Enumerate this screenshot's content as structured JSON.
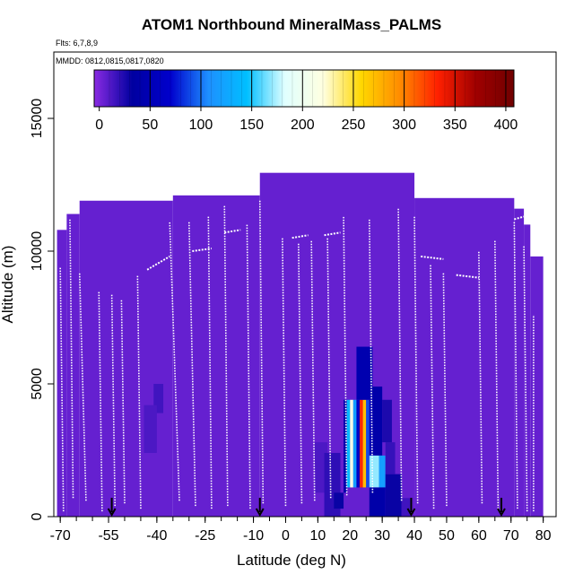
{
  "chart_data": {
    "type": "heatmap",
    "title": "ATOM1 Northbound MineralMass_PALMS",
    "subtitle_flights": "Flts: 6,7,8,9",
    "subtitle_dates": "MMDD: 0812,0815,0817,0820",
    "xlabel": "Latitude (deg N)",
    "ylabel": "Altitude (m)",
    "xlim": [
      -72,
      84
    ],
    "ylim": [
      0,
      17500
    ],
    "xticks": [
      -70,
      -55,
      -40,
      -25,
      -10,
      0,
      10,
      20,
      30,
      40,
      50,
      60,
      70,
      80
    ],
    "yticks": [
      0,
      5000,
      10000,
      15000
    ],
    "colorbar": {
      "ticks": [
        0,
        50,
        100,
        150,
        200,
        250,
        300,
        350,
        400
      ],
      "range": [
        -5,
        408
      ],
      "colors": [
        "#8a2be2",
        "#0000a0",
        "#0000cd",
        "#1e90ff",
        "#00bfff",
        "#e0ffff",
        "#ffffe0",
        "#ffd700",
        "#ff8c00",
        "#ff2000",
        "#a00000",
        "#700000"
      ]
    },
    "background_value": 5,
    "curtain_top": [
      {
        "lat_start": -71,
        "lat_end": -68,
        "alt": 10800
      },
      {
        "lat_start": -68,
        "lat_end": -64,
        "alt": 11400
      },
      {
        "lat_start": -64,
        "lat_end": -35,
        "alt": 11900
      },
      {
        "lat_start": -35,
        "lat_end": -8,
        "alt": 12100
      },
      {
        "lat_start": -8,
        "lat_end": 40,
        "alt": 12950
      },
      {
        "lat_start": 40,
        "lat_end": 71,
        "alt": 12000
      },
      {
        "lat_start": 71,
        "lat_end": 74,
        "alt": 11600
      },
      {
        "lat_start": 74,
        "lat_end": 76,
        "alt": 11000
      },
      {
        "lat_start": 76,
        "lat_end": 80,
        "alt": 9800
      }
    ],
    "cells": [
      {
        "lat": [
          -41,
          -38
        ],
        "alt": [
          3900,
          5000
        ],
        "value": 15
      },
      {
        "lat": [
          -44,
          -40
        ],
        "alt": [
          2400,
          4200
        ],
        "value": 12
      },
      {
        "lat": [
          9,
          13
        ],
        "alt": [
          900,
          2800
        ],
        "value": 12
      },
      {
        "lat": [
          12,
          17
        ],
        "alt": [
          0,
          2400
        ],
        "value": 20
      },
      {
        "lat": [
          15,
          18
        ],
        "alt": [
          300,
          900
        ],
        "value": 30
      },
      {
        "lat": [
          18,
          19
        ],
        "alt": [
          900,
          4400
        ],
        "value": 40
      },
      {
        "lat": [
          19,
          20
        ],
        "alt": [
          1100,
          4400
        ],
        "value": 140
      },
      {
        "lat": [
          20,
          21
        ],
        "alt": [
          1100,
          4400
        ],
        "value": 210
      },
      {
        "lat": [
          21,
          22
        ],
        "alt": [
          1100,
          4400
        ],
        "value": 120
      },
      {
        "lat": [
          22,
          23
        ],
        "alt": [
          1100,
          4400
        ],
        "value": 60
      },
      {
        "lat": [
          23,
          24
        ],
        "alt": [
          1100,
          4400
        ],
        "value": 330
      },
      {
        "lat": [
          24,
          25
        ],
        "alt": [
          1100,
          4400
        ],
        "value": 270
      },
      {
        "lat": [
          25,
          26
        ],
        "alt": [
          1100,
          4400
        ],
        "value": 90
      },
      {
        "lat": [
          26,
          27
        ],
        "alt": [
          1100,
          4400
        ],
        "value": 50
      },
      {
        "lat": [
          22,
          27
        ],
        "alt": [
          4400,
          6400
        ],
        "value": 45
      },
      {
        "lat": [
          27,
          30
        ],
        "alt": [
          2300,
          4900
        ],
        "value": 40
      },
      {
        "lat": [
          26,
          29
        ],
        "alt": [
          1100,
          2300
        ],
        "value": 170
      },
      {
        "lat": [
          29,
          31
        ],
        "alt": [
          1100,
          2300
        ],
        "value": 120
      },
      {
        "lat": [
          26,
          31
        ],
        "alt": [
          0,
          1100
        ],
        "value": 40
      },
      {
        "lat": [
          31,
          36
        ],
        "alt": [
          0,
          1600
        ],
        "value": 30
      },
      {
        "lat": [
          31,
          34
        ],
        "alt": [
          1600,
          2800
        ],
        "value": 18
      },
      {
        "lat": [
          30,
          33
        ],
        "alt": [
          2800,
          4400
        ],
        "value": 25
      },
      {
        "lat": [
          36,
          39
        ],
        "alt": [
          0,
          700
        ],
        "value": 15
      }
    ],
    "profiles": [
      {
        "lat_bottom": -69,
        "lat_top": -70,
        "alt_bottom": 200,
        "alt_top": 9400
      },
      {
        "lat_bottom": -66,
        "lat_top": -67,
        "alt_bottom": 700,
        "alt_top": 11200
      },
      {
        "lat_bottom": -62,
        "lat_top": -64,
        "alt_bottom": 600,
        "alt_top": 9200
      },
      {
        "lat_bottom": -57,
        "lat_top": -58,
        "alt_bottom": 200,
        "alt_top": 8500
      },
      {
        "lat_bottom": -53,
        "lat_top": -54,
        "alt_bottom": 400,
        "alt_top": 8400
      },
      {
        "lat_bottom": -50,
        "lat_top": -51,
        "alt_bottom": 500,
        "alt_top": 8200
      },
      {
        "lat_bottom": -45,
        "lat_top": -46,
        "alt_bottom": 300,
        "alt_top": 9100
      },
      {
        "lat_bottom": -33,
        "lat_top": -36,
        "alt_bottom": 600,
        "alt_top": 11100
      },
      {
        "lat_bottom": -28,
        "lat_top": -30,
        "alt_bottom": 400,
        "alt_top": 11100
      },
      {
        "lat_bottom": -23,
        "lat_top": -24,
        "alt_bottom": 300,
        "alt_top": 11300
      },
      {
        "lat_bottom": -18,
        "lat_top": -19,
        "alt_bottom": 400,
        "alt_top": 11700
      },
      {
        "lat_bottom": -11,
        "lat_top": -12,
        "alt_bottom": 300,
        "alt_top": 11000
      },
      {
        "lat_bottom": -7,
        "lat_top": -8,
        "alt_bottom": 500,
        "alt_top": 11900
      },
      {
        "lat_bottom": 0,
        "lat_top": -1,
        "alt_bottom": 400,
        "alt_top": 10500
      },
      {
        "lat_bottom": 5,
        "lat_top": 4,
        "alt_bottom": 500,
        "alt_top": 10300
      },
      {
        "lat_bottom": 9,
        "lat_top": 8,
        "alt_bottom": 600,
        "alt_top": 10400
      },
      {
        "lat_bottom": 14,
        "lat_top": 13,
        "alt_bottom": 700,
        "alt_top": 10500
      },
      {
        "lat_bottom": 19,
        "lat_top": 18,
        "alt_bottom": 800,
        "alt_top": 11300
      },
      {
        "lat_bottom": 27,
        "lat_top": 26,
        "alt_bottom": 900,
        "alt_top": 11200
      },
      {
        "lat_bottom": 36,
        "lat_top": 35,
        "alt_bottom": 600,
        "alt_top": 11600
      },
      {
        "lat_bottom": 41,
        "lat_top": 40,
        "alt_bottom": 500,
        "alt_top": 11300
      },
      {
        "lat_bottom": 46,
        "lat_top": 45,
        "alt_bottom": 300,
        "alt_top": 9500
      },
      {
        "lat_bottom": 50,
        "lat_top": 49,
        "alt_bottom": 400,
        "alt_top": 9200
      },
      {
        "lat_bottom": 61,
        "lat_top": 60,
        "alt_bottom": 500,
        "alt_top": 10000
      },
      {
        "lat_bottom": 66,
        "lat_top": 65,
        "alt_bottom": 300,
        "alt_top": 10400
      },
      {
        "lat_bottom": 72,
        "lat_top": 71,
        "alt_bottom": 300,
        "alt_top": 11100
      },
      {
        "lat_bottom": 75,
        "lat_top": 74,
        "alt_bottom": 200,
        "alt_top": 10200
      },
      {
        "lat_bottom": 77,
        "lat_top": 77,
        "alt_bottom": 200,
        "alt_top": 7600
      }
    ],
    "legs": [
      {
        "lat": [
          -43,
          -36
        ],
        "alt": [
          9300,
          9800
        ]
      },
      {
        "lat": [
          -29,
          -23
        ],
        "alt": [
          10000,
          10100
        ]
      },
      {
        "lat": [
          -19,
          -14
        ],
        "alt": [
          10700,
          10800
        ]
      },
      {
        "lat": [
          2,
          7
        ],
        "alt": [
          10500,
          10600
        ]
      },
      {
        "lat": [
          12,
          17
        ],
        "alt": [
          10600,
          10700
        ]
      },
      {
        "lat": [
          42,
          49
        ],
        "alt": [
          9800,
          9700
        ]
      },
      {
        "lat": [
          53,
          60
        ],
        "alt": [
          9100,
          9000
        ]
      },
      {
        "lat": [
          71,
          74
        ],
        "alt": [
          11200,
          11300
        ]
      }
    ],
    "arrows": [
      -54,
      -8,
      39,
      67
    ]
  }
}
